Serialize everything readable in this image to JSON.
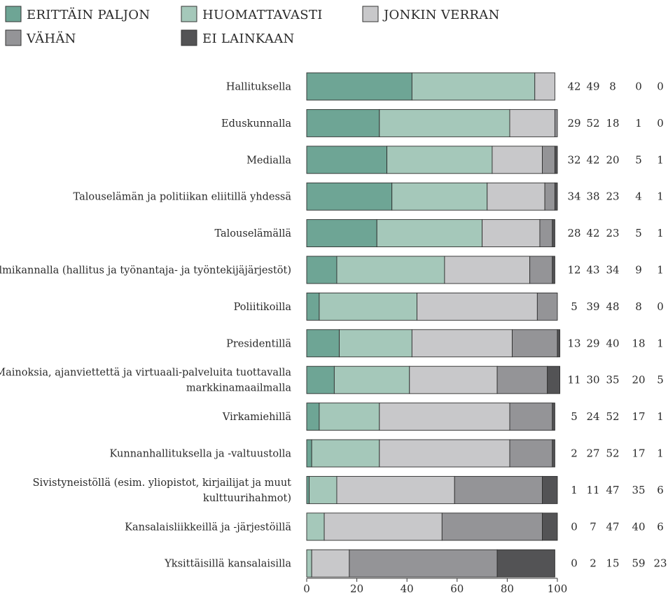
{
  "chart_data": {
    "type": "bar",
    "orientation": "horizontal",
    "stacked": true,
    "categories": [
      "Hallituksella",
      "Eduskunnalla",
      "Medialla",
      "Talouselämän ja politiikan eliitillä yhdessä",
      "Talouselämällä",
      "Kolmikannalla (hallitus ja työnantaja- ja työntekijäjärjestöt)",
      "Poliitikoilla",
      "Presidentillä",
      "Mainoksia, ajanviettettä ja virtuaali-palveluita tuottavalla markkinamaailmalla",
      "Virkamiehillä",
      "Kunnanhallituksella ja -valtuustolla",
      "Sivistyneistöllä (esim. yliopistot, kirjailijat ja muut kulttuurihahmot)",
      "Kansalaisliikkeillä ja -järjestöillä",
      "Yksittäisillä kansalaisilla"
    ],
    "category_lines": [
      [
        "Hallituksella"
      ],
      [
        "Eduskunnalla"
      ],
      [
        "Medialla"
      ],
      [
        "Talouselämän ja politiikan eliitillä yhdessä"
      ],
      [
        "Talouselämällä"
      ],
      [
        "Kolmikannalla (hallitus ja työnantaja- ja työntekijäjärjestöt)"
      ],
      [
        "Poliitikoilla"
      ],
      [
        "Presidentillä"
      ],
      [
        "Mainoksia, ajanviettettä ja virtuaali-palveluita tuottavalla",
        "markkinamaailmalla"
      ],
      [
        "Virkamiehillä"
      ],
      [
        "Kunnanhallituksella ja -valtuustolla"
      ],
      [
        "Sivistyneistöllä (esim. yliopistot, kirjailijat ja muut",
        "kulttuurihahmot)"
      ],
      [
        "Kansalaisliikkeillä ja -järjestöillä"
      ],
      [
        "Yksittäisillä kansalaisilla"
      ]
    ],
    "series": [
      {
        "name": "ERITTÄIN PALJON",
        "color": "#6ea595",
        "values": [
          42,
          29,
          32,
          34,
          28,
          12,
          5,
          13,
          11,
          5,
          2,
          1,
          0,
          0
        ]
      },
      {
        "name": "HUOMATTAVASTI",
        "color": "#a5c8ba",
        "values": [
          49,
          52,
          42,
          38,
          42,
          43,
          39,
          29,
          30,
          24,
          27,
          11,
          7,
          2
        ]
      },
      {
        "name": "JONKIN VERRAN",
        "color": "#c8c8ca",
        "values": [
          8,
          18,
          20,
          23,
          23,
          34,
          48,
          40,
          35,
          52,
          52,
          47,
          47,
          15
        ]
      },
      {
        "name": "VÄHÄN",
        "color": "#949497",
        "values": [
          0,
          1,
          5,
          4,
          5,
          9,
          8,
          18,
          20,
          17,
          17,
          35,
          40,
          59
        ]
      },
      {
        "name": "EI LAINKAAN",
        "color": "#535355",
        "values": [
          0,
          0,
          1,
          1,
          1,
          1,
          0,
          1,
          5,
          1,
          1,
          6,
          6,
          23
        ]
      }
    ],
    "xlim": [
      0,
      100
    ],
    "xticks": [
      0,
      20,
      40,
      60,
      80,
      100
    ],
    "legend_position": "top-left",
    "value_labels_position": "right"
  }
}
